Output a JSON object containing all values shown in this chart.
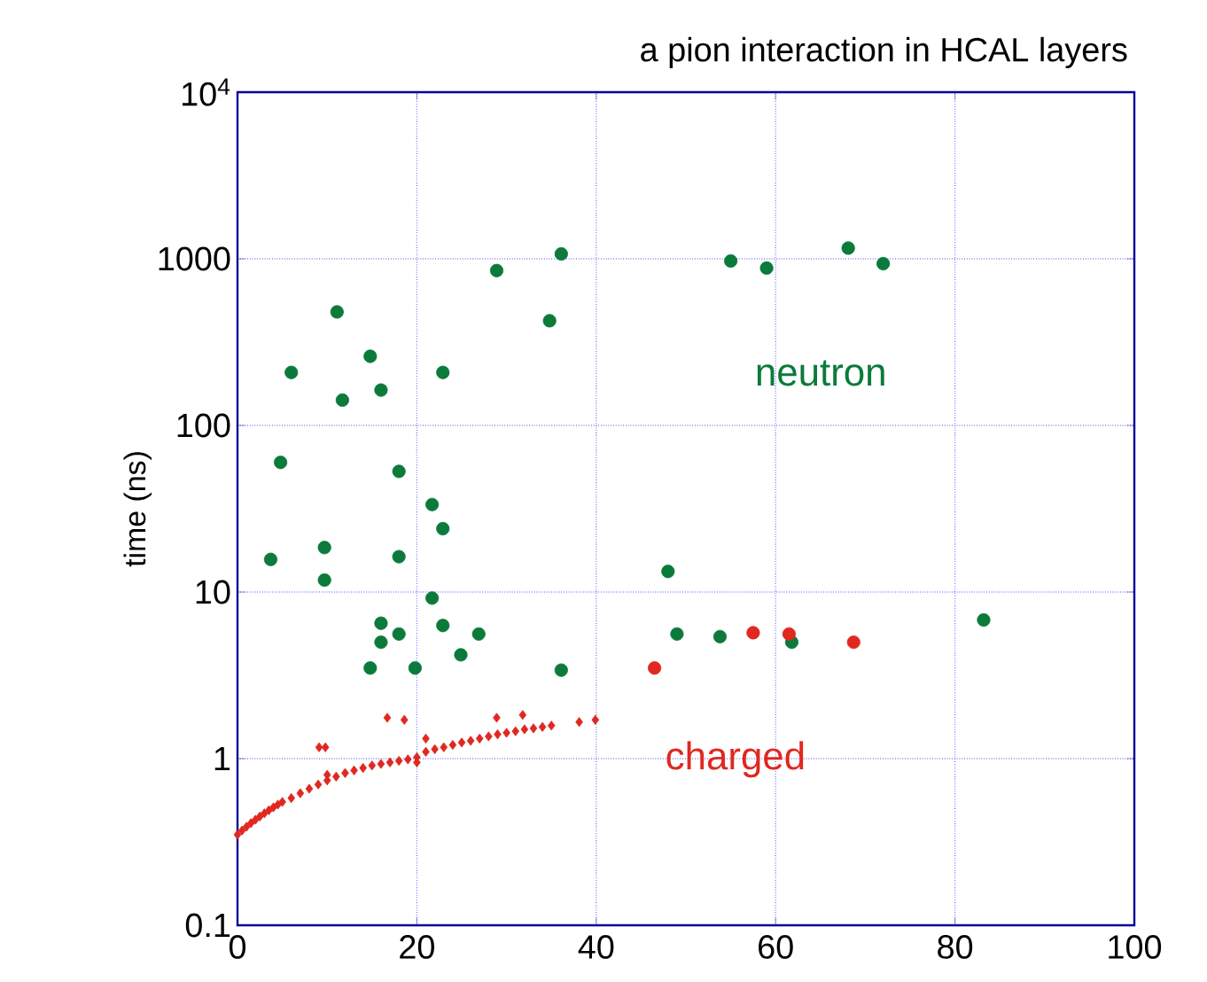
{
  "chart_data": {
    "type": "scatter",
    "title": "a pion interaction in HCAL layers",
    "ylabel": "time (ns)",
    "log": "y",
    "grid": true,
    "xlim": [
      0,
      100
    ],
    "xticks": [
      0,
      20,
      40,
      60,
      80,
      100
    ],
    "ylim": [
      0.1,
      10000
    ],
    "yticks": [
      0.1,
      1,
      10,
      100,
      1000,
      {
        "value": 10000,
        "label": "10$^{4}$"
      }
    ],
    "series": [
      {
        "name": "neutron",
        "color": "#0b7a3a",
        "marker": "circle",
        "x": [
          36.1,
          28.9,
          11.1,
          34.8,
          14.8,
          6.0,
          22.9,
          16.0,
          11.7,
          4.8,
          18.0,
          21.7,
          22.9,
          9.7,
          3.7,
          9.7,
          18.0,
          21.7,
          16.0,
          16.0,
          18.0,
          22.9,
          26.9,
          24.9,
          14.8,
          19.8,
          36.1,
          48.0,
          49.0,
          53.8,
          55.0,
          59.0,
          68.1,
          72.0,
          61.8,
          83.2
        ],
        "values": [
          1070,
          850,
          480,
          425,
          260,
          208,
          208,
          163,
          142,
          60,
          53,
          33.5,
          24,
          18.5,
          15.7,
          11.8,
          16.3,
          9.2,
          6.5,
          5.0,
          5.6,
          6.3,
          5.6,
          4.2,
          3.5,
          3.5,
          3.4,
          13.3,
          5.6,
          5.4,
          970,
          880,
          1160,
          935,
          5.0,
          6.8
        ]
      },
      {
        "name": "charged",
        "color": "#e02820",
        "marker": "diamond",
        "x": [
          0,
          0.5,
          1,
          1.5,
          2,
          2.5,
          3,
          3.5,
          4,
          4.5,
          5,
          6,
          7,
          8,
          9,
          10,
          10,
          11,
          12,
          13,
          14,
          15,
          16,
          17,
          18,
          19,
          20,
          20,
          21,
          22,
          23,
          24,
          25,
          26,
          27,
          28,
          29,
          30,
          31,
          32,
          33,
          34,
          35,
          9.1,
          9.8,
          16.7,
          18.6,
          21,
          28.9,
          31.8,
          38.1,
          39.9
        ],
        "values": [
          0.35,
          0.37,
          0.39,
          0.41,
          0.43,
          0.45,
          0.47,
          0.49,
          0.51,
          0.53,
          0.55,
          0.58,
          0.62,
          0.66,
          0.7,
          0.74,
          0.8,
          0.78,
          0.82,
          0.85,
          0.88,
          0.91,
          0.93,
          0.95,
          0.97,
          0.99,
          1.02,
          0.95,
          1.1,
          1.14,
          1.17,
          1.21,
          1.25,
          1.28,
          1.32,
          1.36,
          1.4,
          1.43,
          1.46,
          1.5,
          1.52,
          1.55,
          1.58,
          1.17,
          1.17,
          1.76,
          1.71,
          1.32,
          1.76,
          1.83,
          1.66,
          1.71
        ]
      },
      {
        "color": "#e02820",
        "marker": "circle",
        "x": [
          46.5,
          57.5,
          61.5,
          68.7
        ],
        "values": [
          3.5,
          5.7,
          5.6,
          5.0
        ]
      }
    ]
  }
}
